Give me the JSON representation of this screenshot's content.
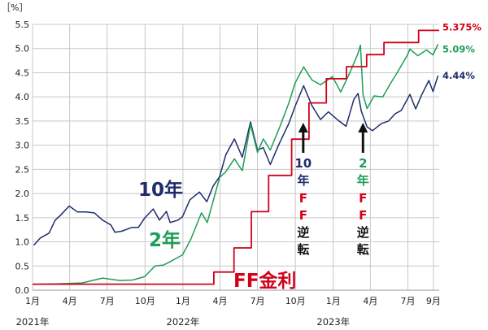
{
  "chart_data": {
    "type": "line",
    "unit_label": "［%］",
    "ylim": [
      0,
      5.5
    ],
    "y_ticks": [
      "0.0",
      "0.5",
      "1.0",
      "1.5",
      "2.0",
      "2.5",
      "3.0",
      "3.5",
      "4.0",
      "4.5",
      "5.0",
      "5.5"
    ],
    "x_range": [
      "2021-01-01",
      "2023-09-15"
    ],
    "x_ticks": [
      {
        "date": "2021-01-01",
        "label": "1月"
      },
      {
        "date": "2021-04-01",
        "label": "4月"
      },
      {
        "date": "2021-07-01",
        "label": "7月"
      },
      {
        "date": "2021-10-01",
        "label": "10月"
      },
      {
        "date": "2022-01-01",
        "label": "1月"
      },
      {
        "date": "2022-04-01",
        "label": "4月"
      },
      {
        "date": "2022-07-01",
        "label": "7月"
      },
      {
        "date": "2022-10-01",
        "label": "10月"
      },
      {
        "date": "2023-01-01",
        "label": "1月"
      },
      {
        "date": "2023-04-01",
        "label": "4月"
      },
      {
        "date": "2023-07-01",
        "label": "7月"
      },
      {
        "date": "2023-09-01",
        "label": "9月"
      }
    ],
    "year_labels": [
      {
        "date": "2021-01-01",
        "label": "2021年"
      },
      {
        "date": "2022-01-01",
        "label": "2022年"
      },
      {
        "date": "2023-01-01",
        "label": "2023年"
      }
    ],
    "grid": true,
    "series": [
      {
        "name": "10年",
        "color": "#1f2d6b",
        "end_label": "4.44%",
        "points": [
          [
            "2021-01-04",
            0.93
          ],
          [
            "2021-01-20",
            1.08
          ],
          [
            "2021-02-10",
            1.18
          ],
          [
            "2021-02-25",
            1.45
          ],
          [
            "2021-03-10",
            1.55
          ],
          [
            "2021-03-31",
            1.74
          ],
          [
            "2021-04-20",
            1.62
          ],
          [
            "2021-05-10",
            1.62
          ],
          [
            "2021-05-31",
            1.6
          ],
          [
            "2021-06-20",
            1.45
          ],
          [
            "2021-07-10",
            1.35
          ],
          [
            "2021-07-20",
            1.2
          ],
          [
            "2021-08-05",
            1.22
          ],
          [
            "2021-08-31",
            1.3
          ],
          [
            "2021-09-15",
            1.3
          ],
          [
            "2021-09-30",
            1.49
          ],
          [
            "2021-10-21",
            1.68
          ],
          [
            "2021-11-05",
            1.45
          ],
          [
            "2021-11-22",
            1.63
          ],
          [
            "2021-12-01",
            1.4
          ],
          [
            "2021-12-20",
            1.45
          ],
          [
            "2021-12-31",
            1.52
          ],
          [
            "2022-01-18",
            1.87
          ],
          [
            "2022-02-10",
            2.03
          ],
          [
            "2022-02-28",
            1.83
          ],
          [
            "2022-03-15",
            2.15
          ],
          [
            "2022-03-31",
            2.35
          ],
          [
            "2022-04-15",
            2.8
          ],
          [
            "2022-05-06",
            3.13
          ],
          [
            "2022-05-25",
            2.75
          ],
          [
            "2022-06-14",
            3.48
          ],
          [
            "2022-07-01",
            2.9
          ],
          [
            "2022-07-15",
            2.95
          ],
          [
            "2022-08-01",
            2.6
          ],
          [
            "2022-08-20",
            2.98
          ],
          [
            "2022-09-15",
            3.45
          ],
          [
            "2022-09-30",
            3.8
          ],
          [
            "2022-10-21",
            4.23
          ],
          [
            "2022-11-10",
            3.82
          ],
          [
            "2022-12-01",
            3.53
          ],
          [
            "2022-12-20",
            3.69
          ],
          [
            "2023-01-15",
            3.5
          ],
          [
            "2023-02-01",
            3.39
          ],
          [
            "2023-02-20",
            3.95
          ],
          [
            "2023-03-02",
            4.07
          ],
          [
            "2023-03-10",
            3.7
          ],
          [
            "2023-03-24",
            3.38
          ],
          [
            "2023-04-06",
            3.3
          ],
          [
            "2023-04-28",
            3.45
          ],
          [
            "2023-05-15",
            3.5
          ],
          [
            "2023-05-31",
            3.65
          ],
          [
            "2023-06-15",
            3.72
          ],
          [
            "2023-07-06",
            4.05
          ],
          [
            "2023-07-20",
            3.75
          ],
          [
            "2023-08-04",
            4.05
          ],
          [
            "2023-08-21",
            4.34
          ],
          [
            "2023-08-31",
            4.11
          ],
          [
            "2023-09-12",
            4.44
          ]
        ]
      },
      {
        "name": "2年",
        "color": "#1e9e57",
        "end_label": "5.09%",
        "points": [
          [
            "2021-01-04",
            0.12
          ],
          [
            "2021-03-01",
            0.13
          ],
          [
            "2021-05-01",
            0.15
          ],
          [
            "2021-06-20",
            0.25
          ],
          [
            "2021-08-01",
            0.2
          ],
          [
            "2021-09-01",
            0.21
          ],
          [
            "2021-09-30",
            0.28
          ],
          [
            "2021-10-25",
            0.5
          ],
          [
            "2021-11-15",
            0.52
          ],
          [
            "2021-12-01",
            0.59
          ],
          [
            "2021-12-31",
            0.73
          ],
          [
            "2022-01-20",
            1.05
          ],
          [
            "2022-02-15",
            1.6
          ],
          [
            "2022-03-01",
            1.4
          ],
          [
            "2022-03-31",
            2.33
          ],
          [
            "2022-04-15",
            2.45
          ],
          [
            "2022-05-06",
            2.72
          ],
          [
            "2022-05-25",
            2.47
          ],
          [
            "2022-06-14",
            3.43
          ],
          [
            "2022-07-01",
            2.85
          ],
          [
            "2022-07-15",
            3.13
          ],
          [
            "2022-08-01",
            2.9
          ],
          [
            "2022-08-25",
            3.4
          ],
          [
            "2022-09-15",
            3.87
          ],
          [
            "2022-09-30",
            4.28
          ],
          [
            "2022-10-21",
            4.62
          ],
          [
            "2022-11-10",
            4.35
          ],
          [
            "2022-12-01",
            4.25
          ],
          [
            "2022-12-30",
            4.42
          ],
          [
            "2023-01-19",
            4.1
          ],
          [
            "2023-02-10",
            4.5
          ],
          [
            "2023-03-01",
            4.88
          ],
          [
            "2023-03-08",
            5.07
          ],
          [
            "2023-03-14",
            4.05
          ],
          [
            "2023-03-24",
            3.76
          ],
          [
            "2023-04-10",
            4.02
          ],
          [
            "2023-05-01",
            4.0
          ],
          [
            "2023-05-20",
            4.28
          ],
          [
            "2023-06-05",
            4.5
          ],
          [
            "2023-06-30",
            4.87
          ],
          [
            "2023-07-06",
            4.99
          ],
          [
            "2023-07-25",
            4.85
          ],
          [
            "2023-08-15",
            4.97
          ],
          [
            "2023-08-31",
            4.87
          ],
          [
            "2023-09-12",
            5.09
          ]
        ]
      },
      {
        "name": "FF金利",
        "color": "#d0021b",
        "end_label": "5.375%",
        "step": true,
        "points": [
          [
            "2021-01-01",
            0.125
          ],
          [
            "2022-03-17",
            0.375
          ],
          [
            "2022-05-05",
            0.875
          ],
          [
            "2022-06-16",
            1.625
          ],
          [
            "2022-07-28",
            2.375
          ],
          [
            "2022-09-22",
            3.125
          ],
          [
            "2022-11-03",
            3.875
          ],
          [
            "2022-12-15",
            4.375
          ],
          [
            "2023-02-02",
            4.625
          ],
          [
            "2023-03-23",
            4.875
          ],
          [
            "2023-05-04",
            5.125
          ],
          [
            "2023-07-27",
            5.375
          ],
          [
            "2023-09-15",
            5.375
          ]
        ]
      }
    ],
    "annotations": [
      {
        "date": "2022-10-20",
        "top": "10年",
        "bottom": "FF逆転"
      },
      {
        "date": "2023-03-14",
        "top": "2年",
        "bottom": "FF逆転"
      }
    ]
  },
  "labels": {
    "ten": "10年",
    "two": "2年",
    "ff": "FF金利"
  }
}
